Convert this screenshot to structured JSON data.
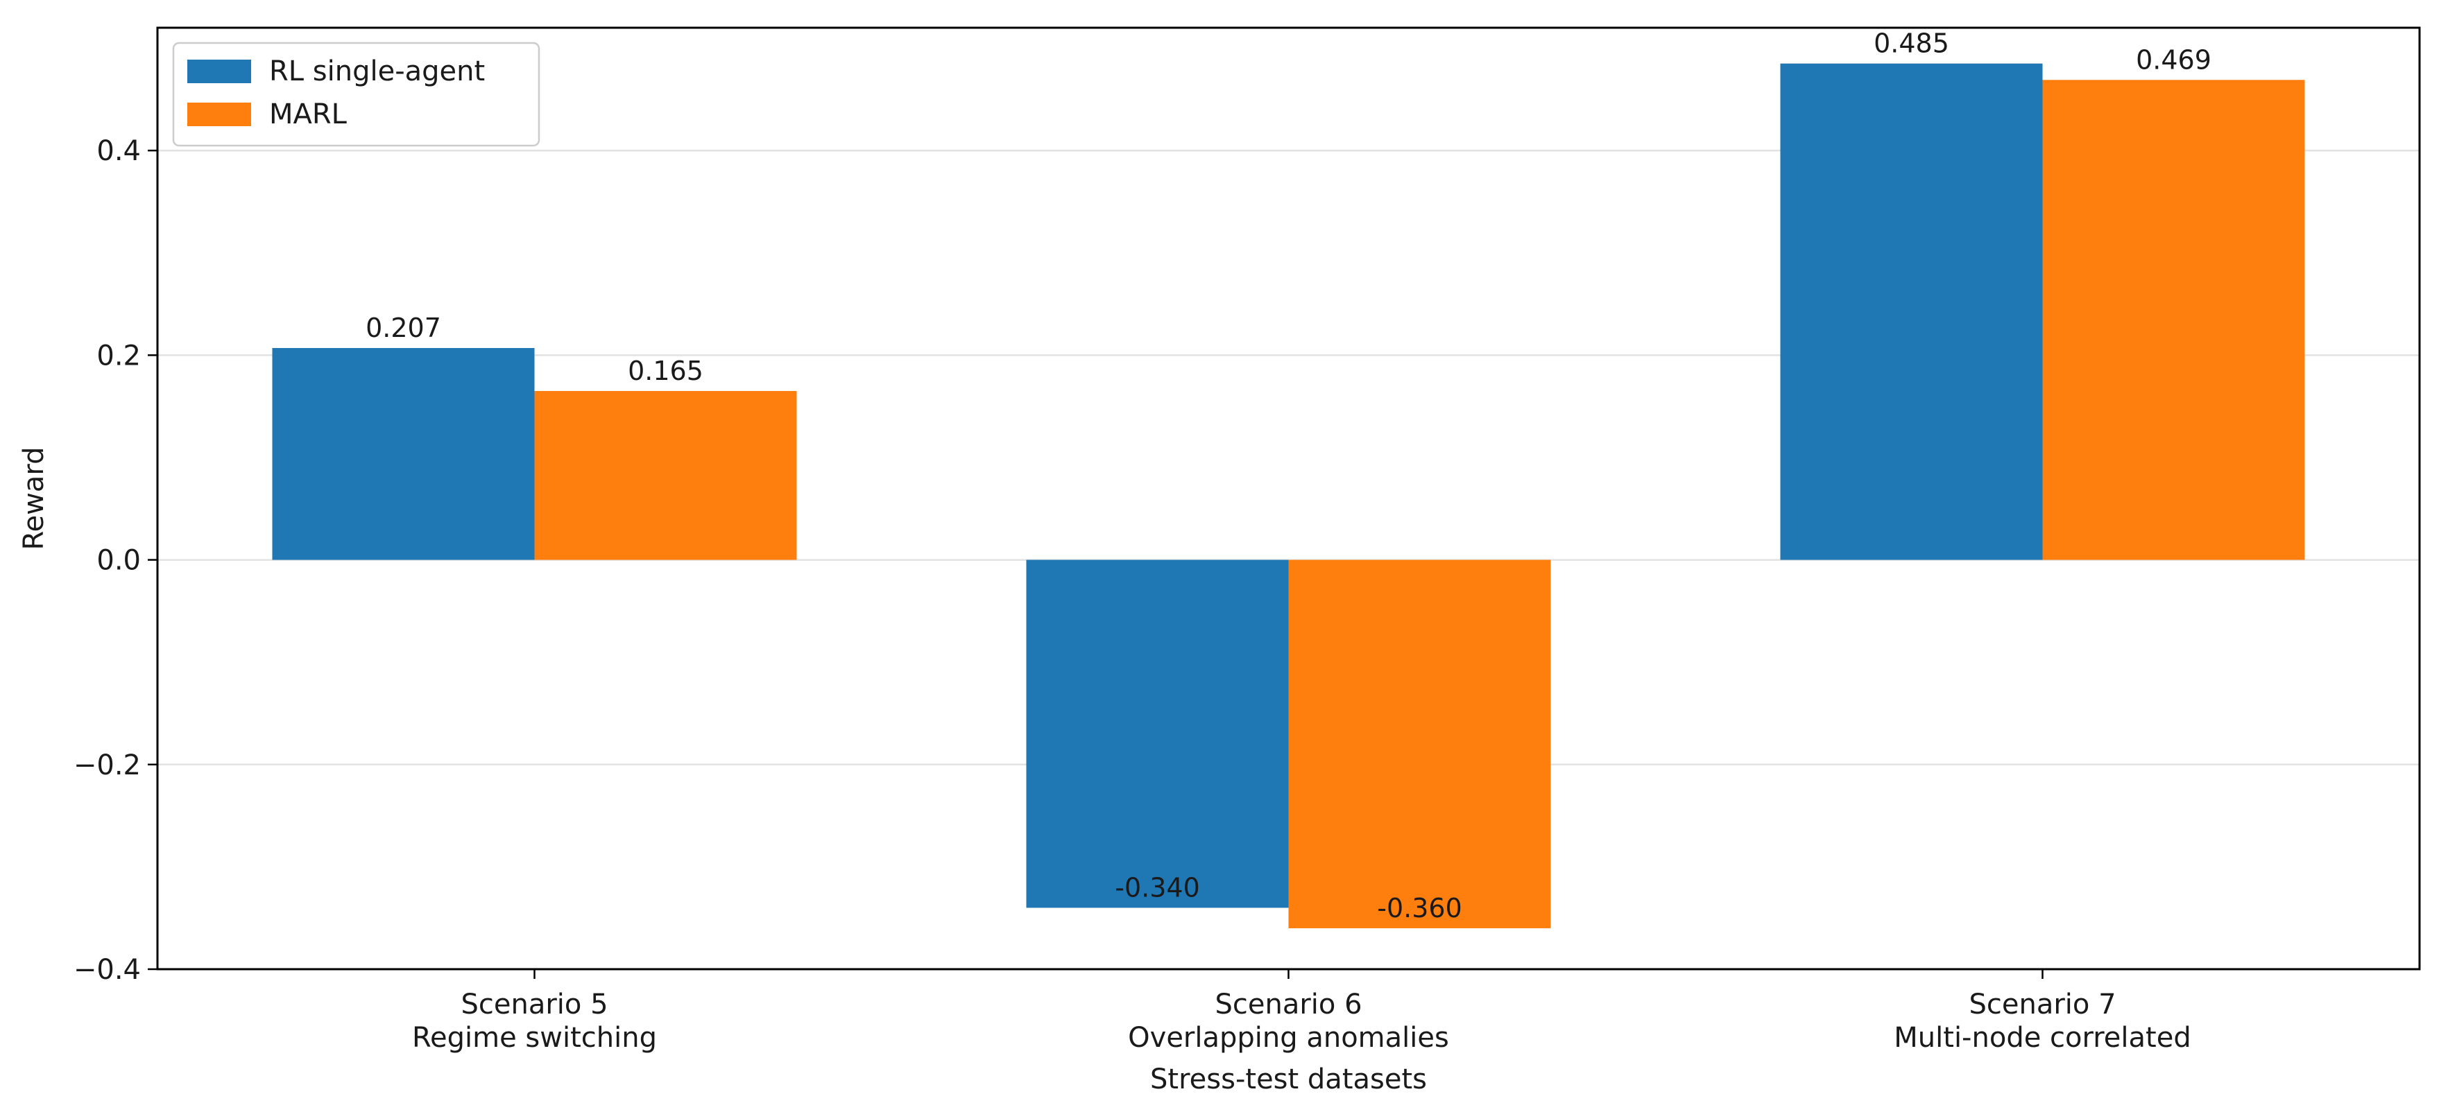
{
  "chart_data": {
    "type": "bar",
    "title": "",
    "xlabel": "Stress-test datasets",
    "ylabel": "Reward",
    "categories": [
      [
        "Scenario 5",
        "Regime switching"
      ],
      [
        "Scenario 6",
        "Overlapping anomalies"
      ],
      [
        "Scenario 7",
        "Multi-node correlated"
      ]
    ],
    "series": [
      {
        "name": "RL single-agent",
        "color": "#1f77b4",
        "values": [
          0.207,
          -0.34,
          0.485
        ],
        "labels": [
          "0.207",
          "-0.340",
          "0.485"
        ]
      },
      {
        "name": "MARL",
        "color": "#ff7f0e",
        "values": [
          0.165,
          -0.36,
          0.469
        ],
        "labels": [
          "0.165",
          "-0.360",
          "0.469"
        ]
      }
    ],
    "ylim": [
      -0.4,
      0.52
    ],
    "yticks": [
      {
        "value": -0.4,
        "label": "−0.4"
      },
      {
        "value": -0.2,
        "label": "−0.2"
      },
      {
        "value": 0.0,
        "label": "0.0"
      },
      {
        "value": 0.2,
        "label": "0.2"
      },
      {
        "value": 0.4,
        "label": "0.4"
      }
    ],
    "grid": "y",
    "legend": "top-left"
  }
}
